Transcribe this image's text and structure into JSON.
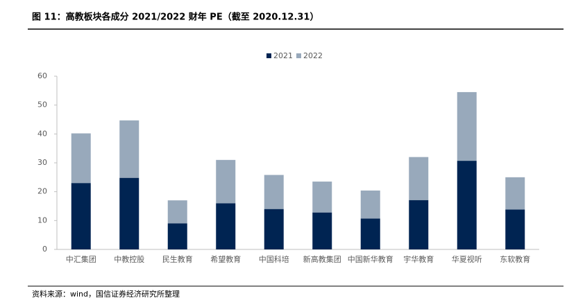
{
  "chart_data": {
    "type": "stacked_bar",
    "title": "图 11：高教板块各成分 2021/2022 财年 PE（截至 2020.12.31）",
    "source": "资料来源：wind，国信证券经济研究所整理",
    "categories": [
      "中汇集团",
      "中教控股",
      "民生教育",
      "希望教育",
      "中国科培",
      "新高教集团",
      "中国新华教育",
      "宇华教育",
      "华夏视听",
      "东软教育"
    ],
    "series": [
      {
        "name": "2021",
        "color": "#002452",
        "values": [
          23,
          24.8,
          9,
          16,
          14,
          12.8,
          10.7,
          17.1,
          30.7,
          13.8
        ]
      },
      {
        "name": "2022",
        "color": "#98a9bb",
        "values": [
          17.2,
          19.9,
          8,
          15,
          11.8,
          10.7,
          9.7,
          14.9,
          23.8,
          11.2
        ]
      }
    ],
    "ylim": [
      0,
      60
    ],
    "yticks": [
      0,
      10,
      20,
      30,
      40,
      50,
      60
    ],
    "legend": "top"
  }
}
